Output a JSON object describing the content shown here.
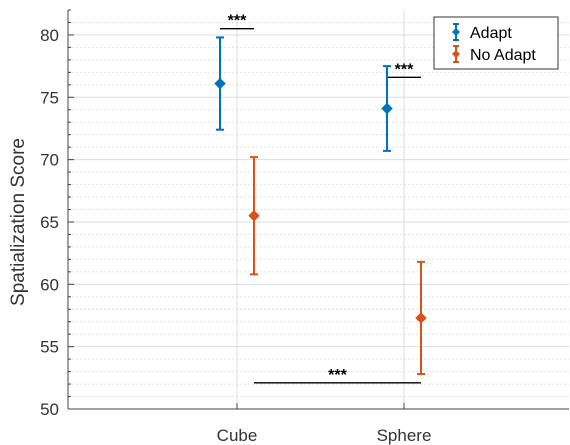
{
  "chart_data": {
    "type": "errorbar",
    "categories": [
      "Cube",
      "Sphere"
    ],
    "ylabel": "Spatialization Score",
    "xlabel": "",
    "ylim": [
      50,
      82
    ],
    "yticks": [
      50,
      55,
      60,
      65,
      70,
      75,
      80
    ],
    "grid": true,
    "minor_grid": true,
    "legend_position": "top-right",
    "series": [
      {
        "name": "Adapt",
        "color": "#0072BD",
        "marker": "diamond",
        "points": [
          {
            "category": "Cube",
            "value": 76.1,
            "lower": 72.4,
            "upper": 79.8
          },
          {
            "category": "Sphere",
            "value": 74.1,
            "lower": 70.7,
            "upper": 77.5
          }
        ]
      },
      {
        "name": "No Adapt",
        "color": "#D95319",
        "marker": "diamond",
        "points": [
          {
            "category": "Cube",
            "value": 65.5,
            "lower": 60.8,
            "upper": 70.2
          },
          {
            "category": "Sphere",
            "value": 57.3,
            "lower": 52.8,
            "upper": 61.8
          }
        ]
      }
    ],
    "annotations": [
      {
        "label": "***",
        "y": 80.5,
        "from": "Cube|Adapt",
        "to": "Cube|No Adapt"
      },
      {
        "label": "***",
        "y": 76.6,
        "from": "Sphere|Adapt",
        "to": "Sphere|No Adapt"
      },
      {
        "label": "***",
        "y": 52.1,
        "from": "Cube|No Adapt",
        "to": "Sphere|No Adapt"
      }
    ]
  }
}
